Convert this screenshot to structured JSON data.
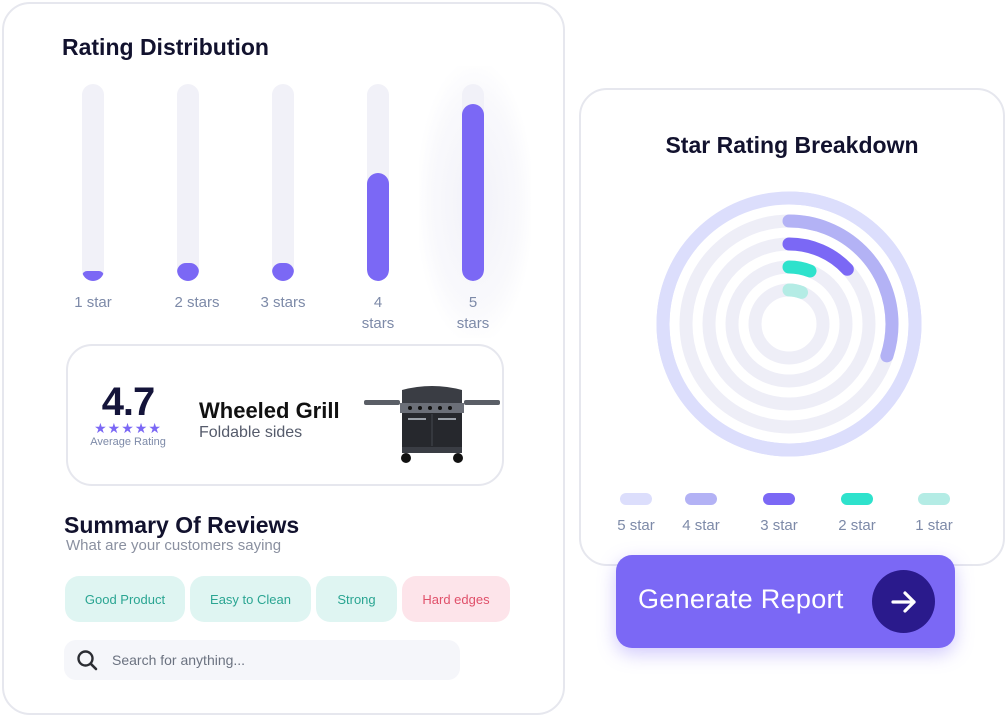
{
  "distribution": {
    "title": "Rating Distribution",
    "bars": [
      {
        "label": "1 star",
        "fraction": 0.05
      },
      {
        "label": "2 stars",
        "fraction": 0.09
      },
      {
        "label": "3 stars",
        "fraction": 0.09
      },
      {
        "label": "4",
        "label2": "stars",
        "fraction": 0.55
      },
      {
        "label": "5",
        "label2": "stars",
        "fraction": 0.9
      }
    ],
    "bar_color": "#7b68f5",
    "track_color": "#f1f1f8"
  },
  "product": {
    "average": "4.7",
    "stars": "★★★★★",
    "average_label": "Average Rating",
    "name": "Wheeled Grill",
    "subtitle": "Foldable sides",
    "image_icon": "grill-icon"
  },
  "summary": {
    "title": "Summary Of Reviews",
    "subtitle": "What are your customers saying",
    "tags": [
      {
        "label": "Good Product",
        "tone": "positive"
      },
      {
        "label": "Easy to Clean",
        "tone": "positive"
      },
      {
        "label": "Strong",
        "tone": "positive"
      },
      {
        "label": "Hard edges",
        "tone": "negative"
      }
    ]
  },
  "search": {
    "placeholder": "Search for anything...",
    "value": "",
    "icon": "search-icon"
  },
  "breakdown": {
    "title": "Star Rating Breakdown",
    "rings": [
      {
        "label": "5 star",
        "color": "#dcdefc",
        "fraction": 0.86
      },
      {
        "label": "4 star",
        "color": "#b3b2f5",
        "fraction": 0.3
      },
      {
        "label": "3 star",
        "color": "#7b68f5",
        "fraction": 0.13
      },
      {
        "label": "2 star",
        "color": "#2ee2cc",
        "fraction": 0.06
      },
      {
        "label": "1 star",
        "color": "#b4ece5",
        "fraction": 0.06
      }
    ],
    "track_color": "#eeeef7"
  },
  "action": {
    "label": "Generate Report",
    "icon": "arrow-right-icon"
  }
}
